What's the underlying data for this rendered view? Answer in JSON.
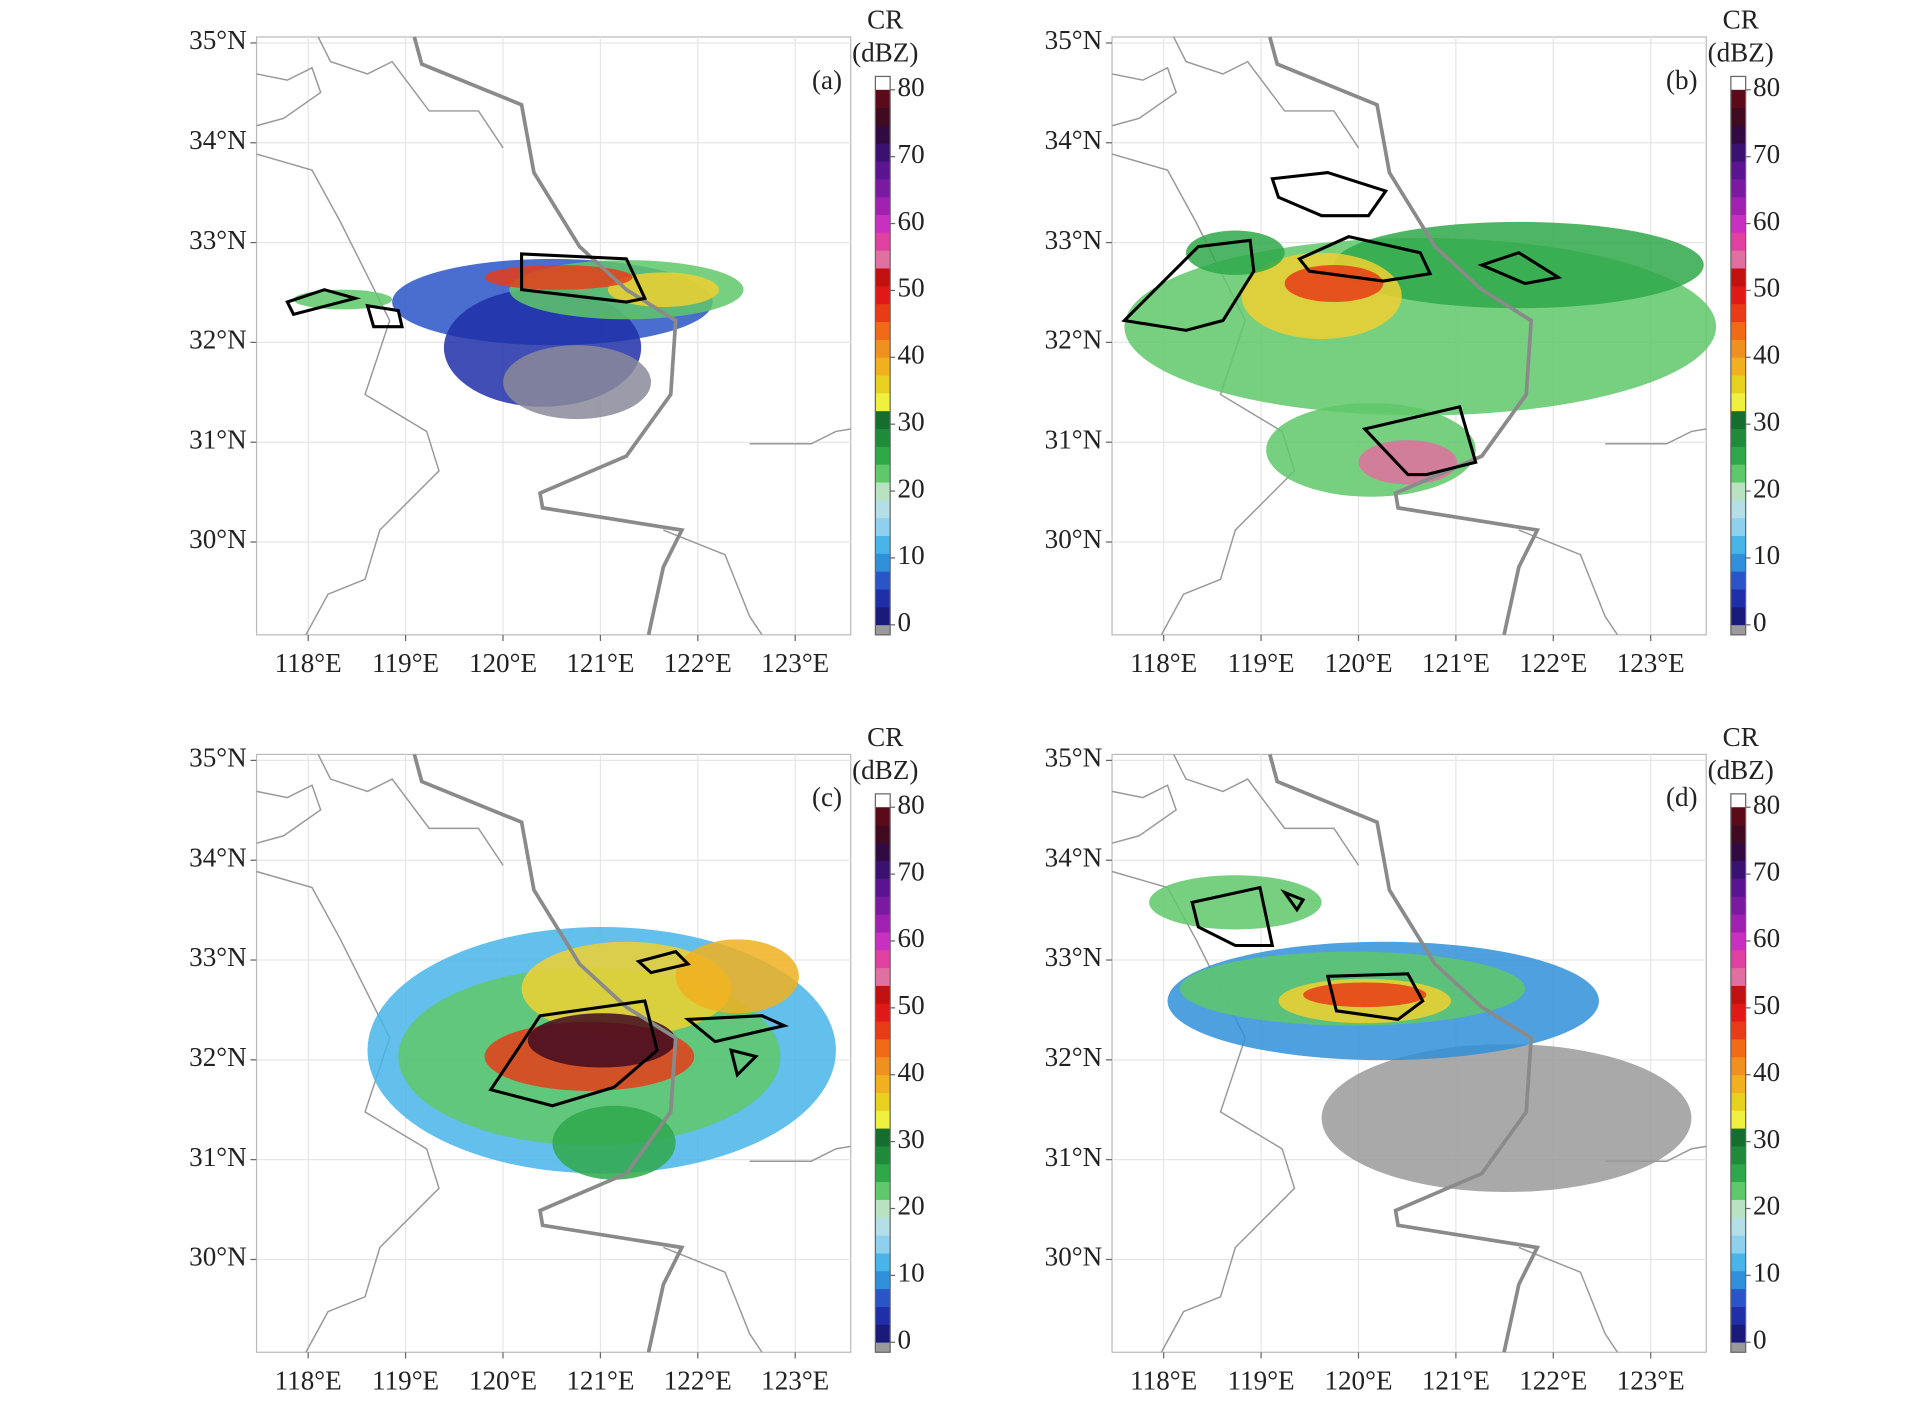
{
  "figure": {
    "lon_range": [
      117.47,
      123.57
    ],
    "lat_range": [
      29.07,
      35.06
    ],
    "lon_ticks": [
      {
        "value": 118,
        "label": "118°E"
      },
      {
        "value": 119,
        "label": "119°E"
      },
      {
        "value": 120,
        "label": "120°E"
      },
      {
        "value": 121,
        "label": "121°E"
      },
      {
        "value": 122,
        "label": "122°E"
      },
      {
        "value": 123,
        "label": "123°E"
      }
    ],
    "lat_ticks": [
      {
        "value": 30,
        "label": "30°N"
      },
      {
        "value": 31,
        "label": "31°N"
      },
      {
        "value": 32,
        "label": "32°N"
      },
      {
        "value": 33,
        "label": "33°N"
      },
      {
        "value": 34,
        "label": "34°N"
      },
      {
        "value": 35,
        "label": "35°N"
      }
    ],
    "grid": true,
    "colorbar": {
      "title": "CR",
      "unit": "(dBZ)",
      "range": [
        -1.5,
        82
      ],
      "ticks": [
        0,
        10,
        20,
        30,
        40,
        50,
        60,
        70,
        80
      ],
      "below_color": "#9a9a9a",
      "colors": [
        "#1a1a7a",
        "#1f2fa8",
        "#2a55c8",
        "#2f8fd8",
        "#48b4e8",
        "#8fd0ef",
        "#b5dfe8",
        "#b9e3c0",
        "#5fc86a",
        "#2fa84a",
        "#1f8a3a",
        "#156e2e",
        "#f0f040",
        "#e8d020",
        "#f0b020",
        "#f09020",
        "#f06a18",
        "#e83c18",
        "#e01818",
        "#c01010",
        "#e070a0",
        "#e040a0",
        "#c830c0",
        "#a020b0",
        "#7a1aa0",
        "#5a1490",
        "#3a1070",
        "#300a40",
        "#400a20",
        "#5a0a18"
      ]
    },
    "panels": [
      {
        "label": "(a)"
      },
      {
        "label": "(b)"
      },
      {
        "label": "(c)"
      },
      {
        "label": "(d)"
      }
    ]
  }
}
